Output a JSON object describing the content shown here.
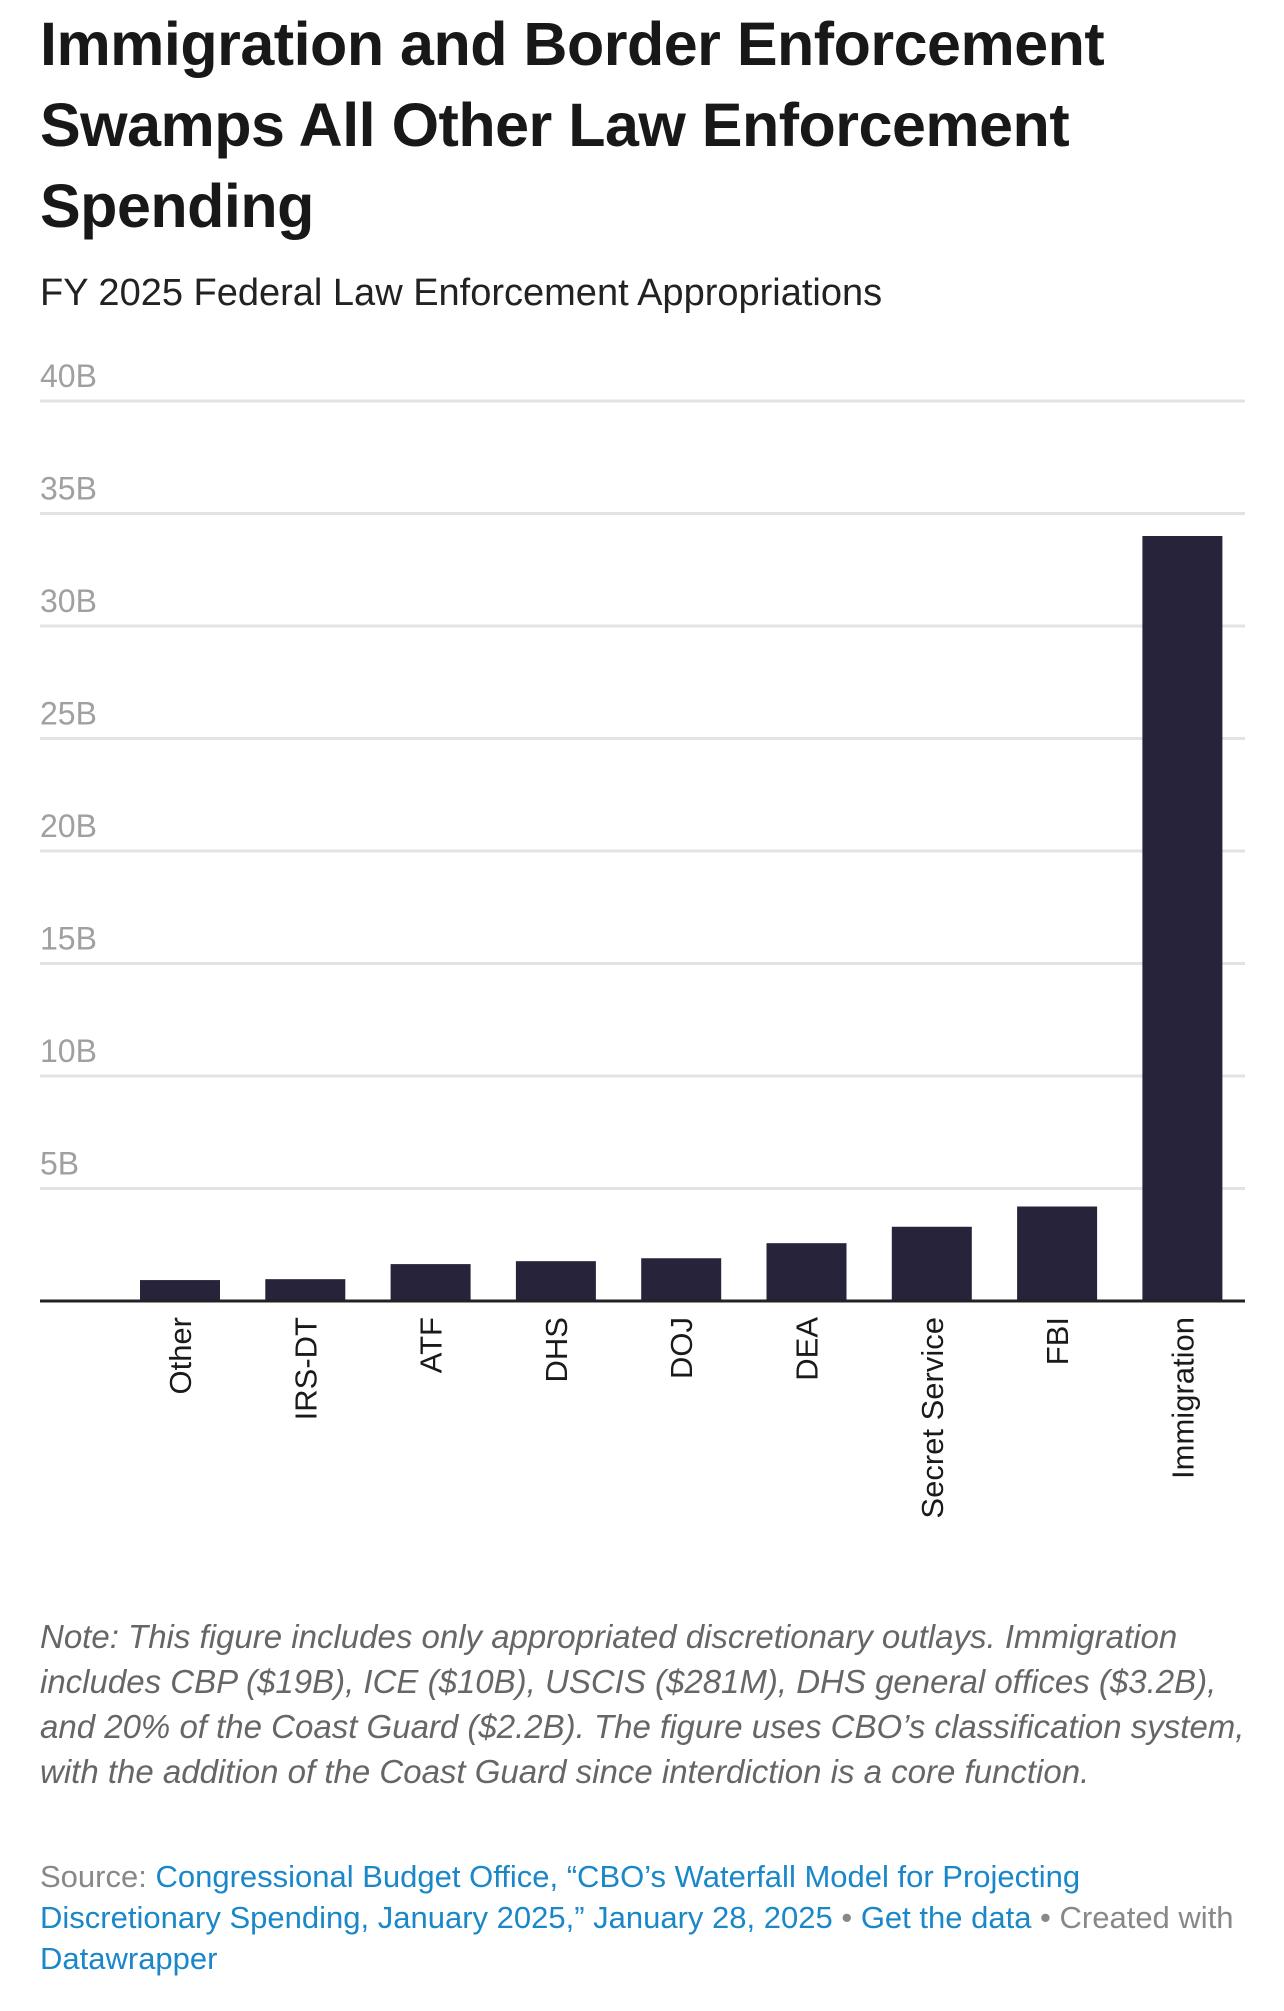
{
  "chart_data": {
    "type": "bar",
    "title": "Immigration and Border Enforcement Swamps All Other Law Enforcement Spending",
    "subtitle": "FY 2025 Federal Law Enforcement Appropriations",
    "xlabel": "",
    "ylabel": "",
    "ylim": [
      0,
      40
    ],
    "yticks": [
      0,
      5,
      10,
      15,
      20,
      25,
      30,
      35,
      40
    ],
    "ytick_labels": [
      "",
      "5B",
      "10B",
      "15B",
      "20B",
      "25B",
      "30B",
      "35B",
      "40B"
    ],
    "grid": true,
    "bar_color": "#27233a",
    "categories": [
      "Other",
      "IRS-DT",
      "ATF",
      "DHS",
      "DOJ",
      "DEA",
      "Secret Service",
      "FBI",
      "Immigration"
    ],
    "values": [
      0.93,
      0.97,
      1.64,
      1.77,
      1.9,
      2.57,
      3.3,
      4.2,
      34.0
    ]
  },
  "note": "Note: This figure includes only appropriated discretionary outlays. Immigration includes CBP ($19B), ICE ($10B), USCIS ($281M), DHS general offices ($3.2B), and 20% of the Coast Guard ($2.2B). The figure uses CBO’s classification system, with the addition of the Coast Guard since interdiction is a core function.",
  "footer": {
    "source_label": "Source: ",
    "source_link": "Congressional Budget Office, “CBO’s Waterfall Model for Projecting Discretionary Spending, January 2025,” January 28, 2025",
    "sep1": " • ",
    "get_data": "Get the data",
    "sep2": " • Created with ",
    "datawrapper": "Datawrapper"
  },
  "colors": {
    "bar": "#27233a",
    "link": "#1a87c9",
    "grid": "#e3e3e3"
  }
}
